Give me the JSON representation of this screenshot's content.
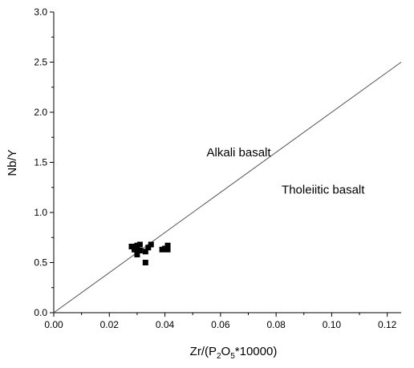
{
  "chart_data": {
    "type": "scatter",
    "xlabel": {
      "main": "Zr/(P",
      "sub1": "2",
      "mid": "O",
      "sub2": "5",
      "tail": "*10000)"
    },
    "ylabel": "Nb/Y",
    "xlim": [
      0,
      0.125
    ],
    "ylim": [
      0,
      3.0
    ],
    "x_ticks": [
      "0.00",
      "0.02",
      "0.04",
      "0.06",
      "0.08",
      "0.10",
      "0.12"
    ],
    "x_tick_values": [
      0,
      0.02,
      0.04,
      0.06,
      0.08,
      0.1,
      0.12
    ],
    "y_ticks": [
      "0.0",
      "0.5",
      "1.0",
      "1.5",
      "2.0",
      "2.5",
      "3.0"
    ],
    "y_tick_values": [
      0,
      0.5,
      1.0,
      1.5,
      2.0,
      2.5,
      3.0
    ],
    "grid": false,
    "marker": "square",
    "marker_color": "#000000",
    "points": [
      {
        "x": 0.028,
        "y": 0.66
      },
      {
        "x": 0.029,
        "y": 0.63
      },
      {
        "x": 0.03,
        "y": 0.67
      },
      {
        "x": 0.03,
        "y": 0.58
      },
      {
        "x": 0.031,
        "y": 0.68
      },
      {
        "x": 0.031,
        "y": 0.62
      },
      {
        "x": 0.033,
        "y": 0.61
      },
      {
        "x": 0.033,
        "y": 0.5
      },
      {
        "x": 0.034,
        "y": 0.65
      },
      {
        "x": 0.035,
        "y": 0.68
      },
      {
        "x": 0.039,
        "y": 0.63
      },
      {
        "x": 0.04,
        "y": 0.64
      },
      {
        "x": 0.041,
        "y": 0.67
      },
      {
        "x": 0.041,
        "y": 0.63
      }
    ],
    "boundary_line": {
      "from": [
        0,
        0
      ],
      "to": [
        0.125,
        2.5
      ],
      "color": "#555555"
    },
    "annotations": [
      {
        "text": "Alkali basalt",
        "x": 0.055,
        "y": 1.56
      },
      {
        "text": "Tholeiitic basalt",
        "x": 0.082,
        "y": 1.19
      }
    ]
  }
}
